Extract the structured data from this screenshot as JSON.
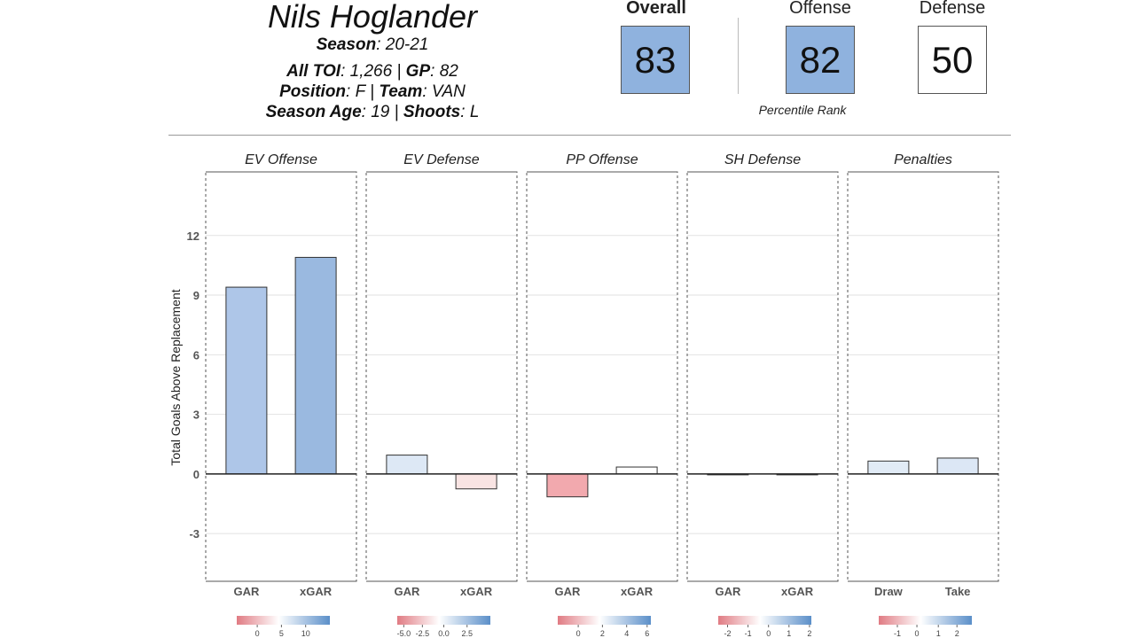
{
  "player": {
    "name": "Nils Hoglander",
    "season_label": "Season",
    "season": "20-21",
    "toi_label": "All TOI",
    "toi": "1,266",
    "gp_label": "GP",
    "gp": "82",
    "position_label": "Position",
    "position": "F",
    "team_label": "Team",
    "team": "VAN",
    "age_label": "Season Age",
    "age": "19",
    "shoots_label": "Shoots",
    "shoots": "L"
  },
  "scores": {
    "overall_label": "Overall",
    "overall": "83",
    "offense_label": "Offense",
    "offense": "82",
    "defense_label": "Defense",
    "defense": "50",
    "caption": "Percentile Rank"
  },
  "colors": {
    "strong_blue": "#8fb2de",
    "white": "#ffffff",
    "scale_low": "#e07b83",
    "scale_high": "#5b8fc9"
  },
  "chart_data": {
    "type": "bar",
    "ylabel": "Total Goals Above Replacement",
    "ylim": [
      -5.4,
      15.2
    ],
    "yticks": [
      -3,
      0,
      3,
      6,
      9,
      12
    ],
    "grid": true,
    "panels": [
      {
        "title": "EV Offense",
        "categories": [
          "GAR",
          "xGAR"
        ],
        "values": [
          9.4,
          10.9
        ],
        "colors": [
          "#aec6e8",
          "#9ab9e0"
        ],
        "scale": {
          "ticks": [
            "0",
            "5",
            "10"
          ],
          "positions": [
            0.22,
            0.48,
            0.74
          ]
        }
      },
      {
        "title": "EV Defense",
        "categories": [
          "GAR",
          "xGAR"
        ],
        "values": [
          0.95,
          -0.75
        ],
        "colors": [
          "#dde8f5",
          "#f9e4e3"
        ],
        "scale": {
          "ticks": [
            "-5.0",
            "-2.5",
            "0.0",
            "2.5"
          ],
          "positions": [
            0.07,
            0.27,
            0.5,
            0.75
          ]
        }
      },
      {
        "title": "PP Offense",
        "categories": [
          "GAR",
          "xGAR"
        ],
        "values": [
          -1.15,
          0.35
        ],
        "colors": [
          "#f2a9ae",
          "#ffffff"
        ],
        "scale": {
          "ticks": [
            "0",
            "2",
            "4",
            "6"
          ],
          "positions": [
            0.22,
            0.48,
            0.74,
            0.96
          ]
        }
      },
      {
        "title": "SH Defense",
        "categories": [
          "GAR",
          "xGAR"
        ],
        "values": [
          -0.03,
          -0.02
        ],
        "colors": [
          "#f2d3d3",
          "#eef2f8"
        ],
        "scale": {
          "ticks": [
            "-2",
            "-1",
            "0",
            "1",
            "2"
          ],
          "positions": [
            0.1,
            0.32,
            0.54,
            0.76,
            0.98
          ]
        }
      },
      {
        "title": "Penalties",
        "categories": [
          "Draw",
          "Take"
        ],
        "values": [
          0.65,
          0.8
        ],
        "colors": [
          "#e1ebf6",
          "#dce7f5"
        ],
        "scale": {
          "ticks": [
            "-1",
            "0",
            "1",
            "2"
          ],
          "positions": [
            0.2,
            0.41,
            0.64,
            0.84
          ]
        }
      }
    ]
  }
}
